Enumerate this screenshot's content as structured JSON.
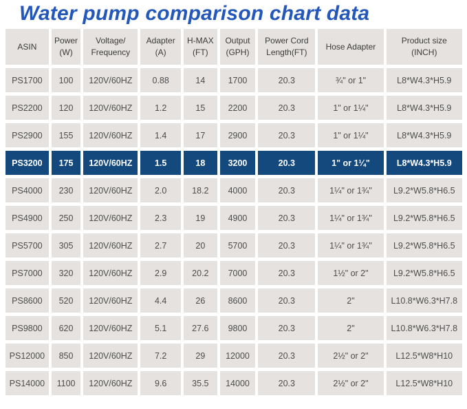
{
  "page": {
    "title": "Water pump comparison chart data"
  },
  "colors": {
    "title_blue": "#2457ba",
    "highlight_row_blue": "#14497e",
    "cell_gray": "#e5e2df",
    "cell_text": "#4d4d4d",
    "highlight_text": "#ffffff"
  },
  "chart_data": {
    "type": "table",
    "title": "Water pump comparison chart data",
    "highlighted_asin": "PS3200",
    "columns": [
      {
        "id": "asin",
        "label": "ASIN"
      },
      {
        "id": "power",
        "label": "Power\n(W)"
      },
      {
        "id": "voltage-frequency",
        "label": "Voltage/\nFrequency"
      },
      {
        "id": "adapter",
        "label": "Adapter\n(A)"
      },
      {
        "id": "h-max",
        "label": "H-MAX\n(FT)"
      },
      {
        "id": "output",
        "label": "Output\n(GPH)"
      },
      {
        "id": "power-cord-length",
        "label": "Power Cord\nLength(FT)"
      },
      {
        "id": "hose-adapter",
        "label": "Hose Adapter"
      },
      {
        "id": "product-size",
        "label": "Product size\n(INCH)"
      }
    ],
    "rows": [
      [
        "PS1700",
        "100",
        "120V/60HZ",
        "0.88",
        "14",
        "1700",
        "20.3",
        "¾\" or 1\"",
        "L8*W4.3*H5.9"
      ],
      [
        "PS2200",
        "120",
        "120V/60HZ",
        "1.2",
        "15",
        "2200",
        "20.3",
        "1\" or 1¼\"",
        "L8*W4.3*H5.9"
      ],
      [
        "PS2900",
        "155",
        "120V/60HZ",
        "1.4",
        "17",
        "2900",
        "20.3",
        "1\" or 1¼\"",
        "L8*W4.3*H5.9"
      ],
      [
        "PS3200",
        "175",
        "120V/60HZ",
        "1.5",
        "18",
        "3200",
        "20.3",
        "1\" or 1¼\"",
        "L8*W4.3*H5.9"
      ],
      [
        "PS4000",
        "230",
        "120V/60HZ",
        "2.0",
        "18.2",
        "4000",
        "20.3",
        "1¼\" or 1¾\"",
        "L9.2*W5.8*H6.5"
      ],
      [
        "PS4900",
        "250",
        "120V/60HZ",
        "2.3",
        "19",
        "4900",
        "20.3",
        "1¼\" or 1¾\"",
        "L9.2*W5.8*H6.5"
      ],
      [
        "PS5700",
        "305",
        "120V/60HZ",
        "2.7",
        "20",
        "5700",
        "20.3",
        "1¼\" or 1¾\"",
        "L9.2*W5.8*H6.5"
      ],
      [
        "PS7000",
        "320",
        "120V/60HZ",
        "2.9",
        "20.2",
        "7000",
        "20.3",
        "1½\" or 2\"",
        "L9.2*W5.8*H6.5"
      ],
      [
        "PS8600",
        "520",
        "120V/60HZ",
        "4.4",
        "26",
        "8600",
        "20.3",
        "2\"",
        "L10.8*W6.3*H7.8"
      ],
      [
        "PS9800",
        "620",
        "120V/60HZ",
        "5.1",
        "27.6",
        "9800",
        "20.3",
        "2\"",
        "L10.8*W6.3*H7.8"
      ],
      [
        "PS12000",
        "850",
        "120V/60HZ",
        "7.2",
        "29",
        "12000",
        "20.3",
        "2½\" or 2\"",
        "L12.5*W8*H10"
      ],
      [
        "PS14000",
        "1100",
        "120V/60HZ",
        "9.6",
        "35.5",
        "14000",
        "20.3",
        "2½\" or 2\"",
        "L12.5*W8*H10"
      ]
    ]
  }
}
